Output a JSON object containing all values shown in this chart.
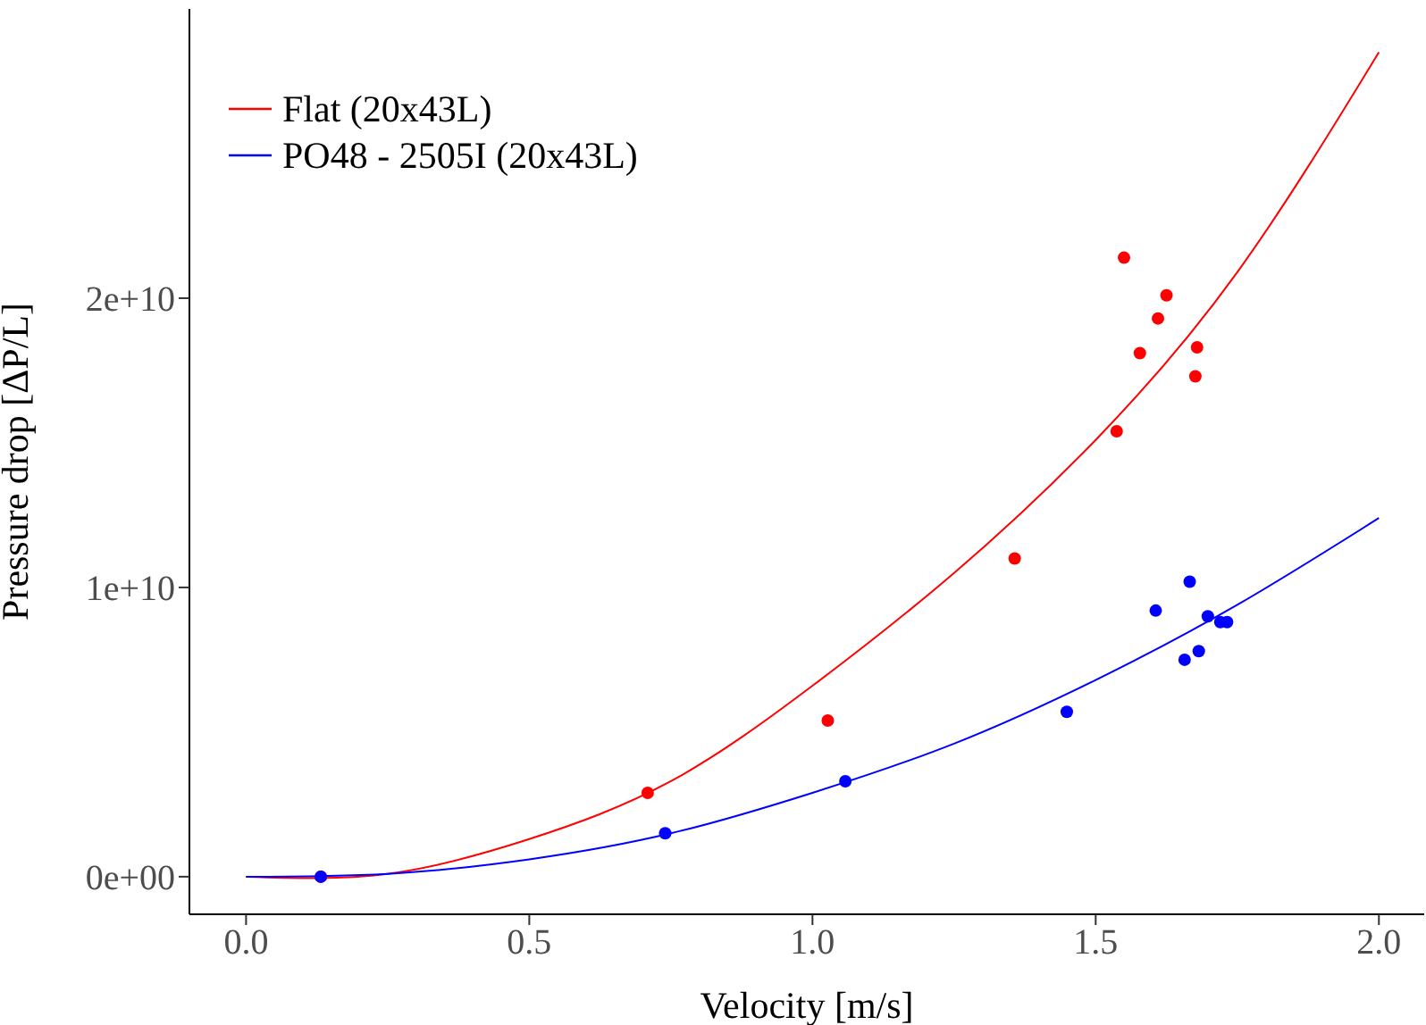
{
  "chart_data": {
    "type": "scatter",
    "xlabel": "Velocity [m/s]",
    "ylabel": "Pressure drop [ΔP/L]",
    "xlim": [
      -0.1,
      2.08
    ],
    "xticks": [
      {
        "value": 0,
        "label": "0.0"
      },
      0.5,
      {
        "value": 1,
        "label": "1.0"
      },
      1.5,
      {
        "value": 2,
        "label": "2.0"
      }
    ],
    "ylim": [
      -1300000000,
      30000000000
    ],
    "yticks": [
      {
        "value": 0,
        "label": "0e+00"
      },
      {
        "value": 10000000000,
        "label": "1e+10"
      },
      {
        "value": 20000000000,
        "label": "2e+10"
      }
    ],
    "grid": false,
    "legend": "top left",
    "series": [
      {
        "marker": "circle",
        "color": "#ff0000",
        "x": [
          0.132,
          0.709,
          1.027,
          1.357,
          1.537,
          1.55,
          1.578,
          1.61,
          1.625,
          1.679,
          1.676
        ],
        "values": [
          0,
          2900000000,
          5400000000,
          11000000000,
          15400000000,
          21400000000,
          18100000000,
          19300000000,
          20100000000,
          18300000000,
          17300000000
        ]
      },
      {
        "marker": "circle",
        "color": "#0000ff",
        "x": [
          0.132,
          0.74,
          1.058,
          1.449,
          1.606,
          1.666,
          1.698,
          1.657,
          1.682,
          1.72,
          1.732
        ],
        "values": [
          0,
          1500000000,
          3300000000,
          5700000000,
          9200000000,
          10200000000,
          9000000000,
          7500000000,
          7800000000,
          8800000000,
          8800000000
        ]
      },
      {
        "type": "line",
        "marker": "none",
        "name": "Flat (20x43L)",
        "color": "#ff0000",
        "x": [
          0,
          0.25,
          0.5,
          0.75,
          1,
          1.25,
          1.5,
          1.75,
          2
        ],
        "values": [
          0,
          100000000,
          1300000000,
          3300000000,
          6600000000,
          10500000000,
          15100000000,
          20900000000,
          28500000000
        ]
      },
      {
        "type": "line",
        "marker": "none",
        "name": "PO48 - 2505I (20x43L)",
        "color": "#0000ff",
        "x": [
          0,
          0.25,
          0.5,
          0.75,
          1,
          1.25,
          1.5,
          1.75,
          2
        ],
        "values": [
          0,
          100000000,
          600000000,
          1500000000,
          2900000000,
          4600000000,
          6800000000,
          9400000000,
          12400000000
        ]
      }
    ]
  }
}
